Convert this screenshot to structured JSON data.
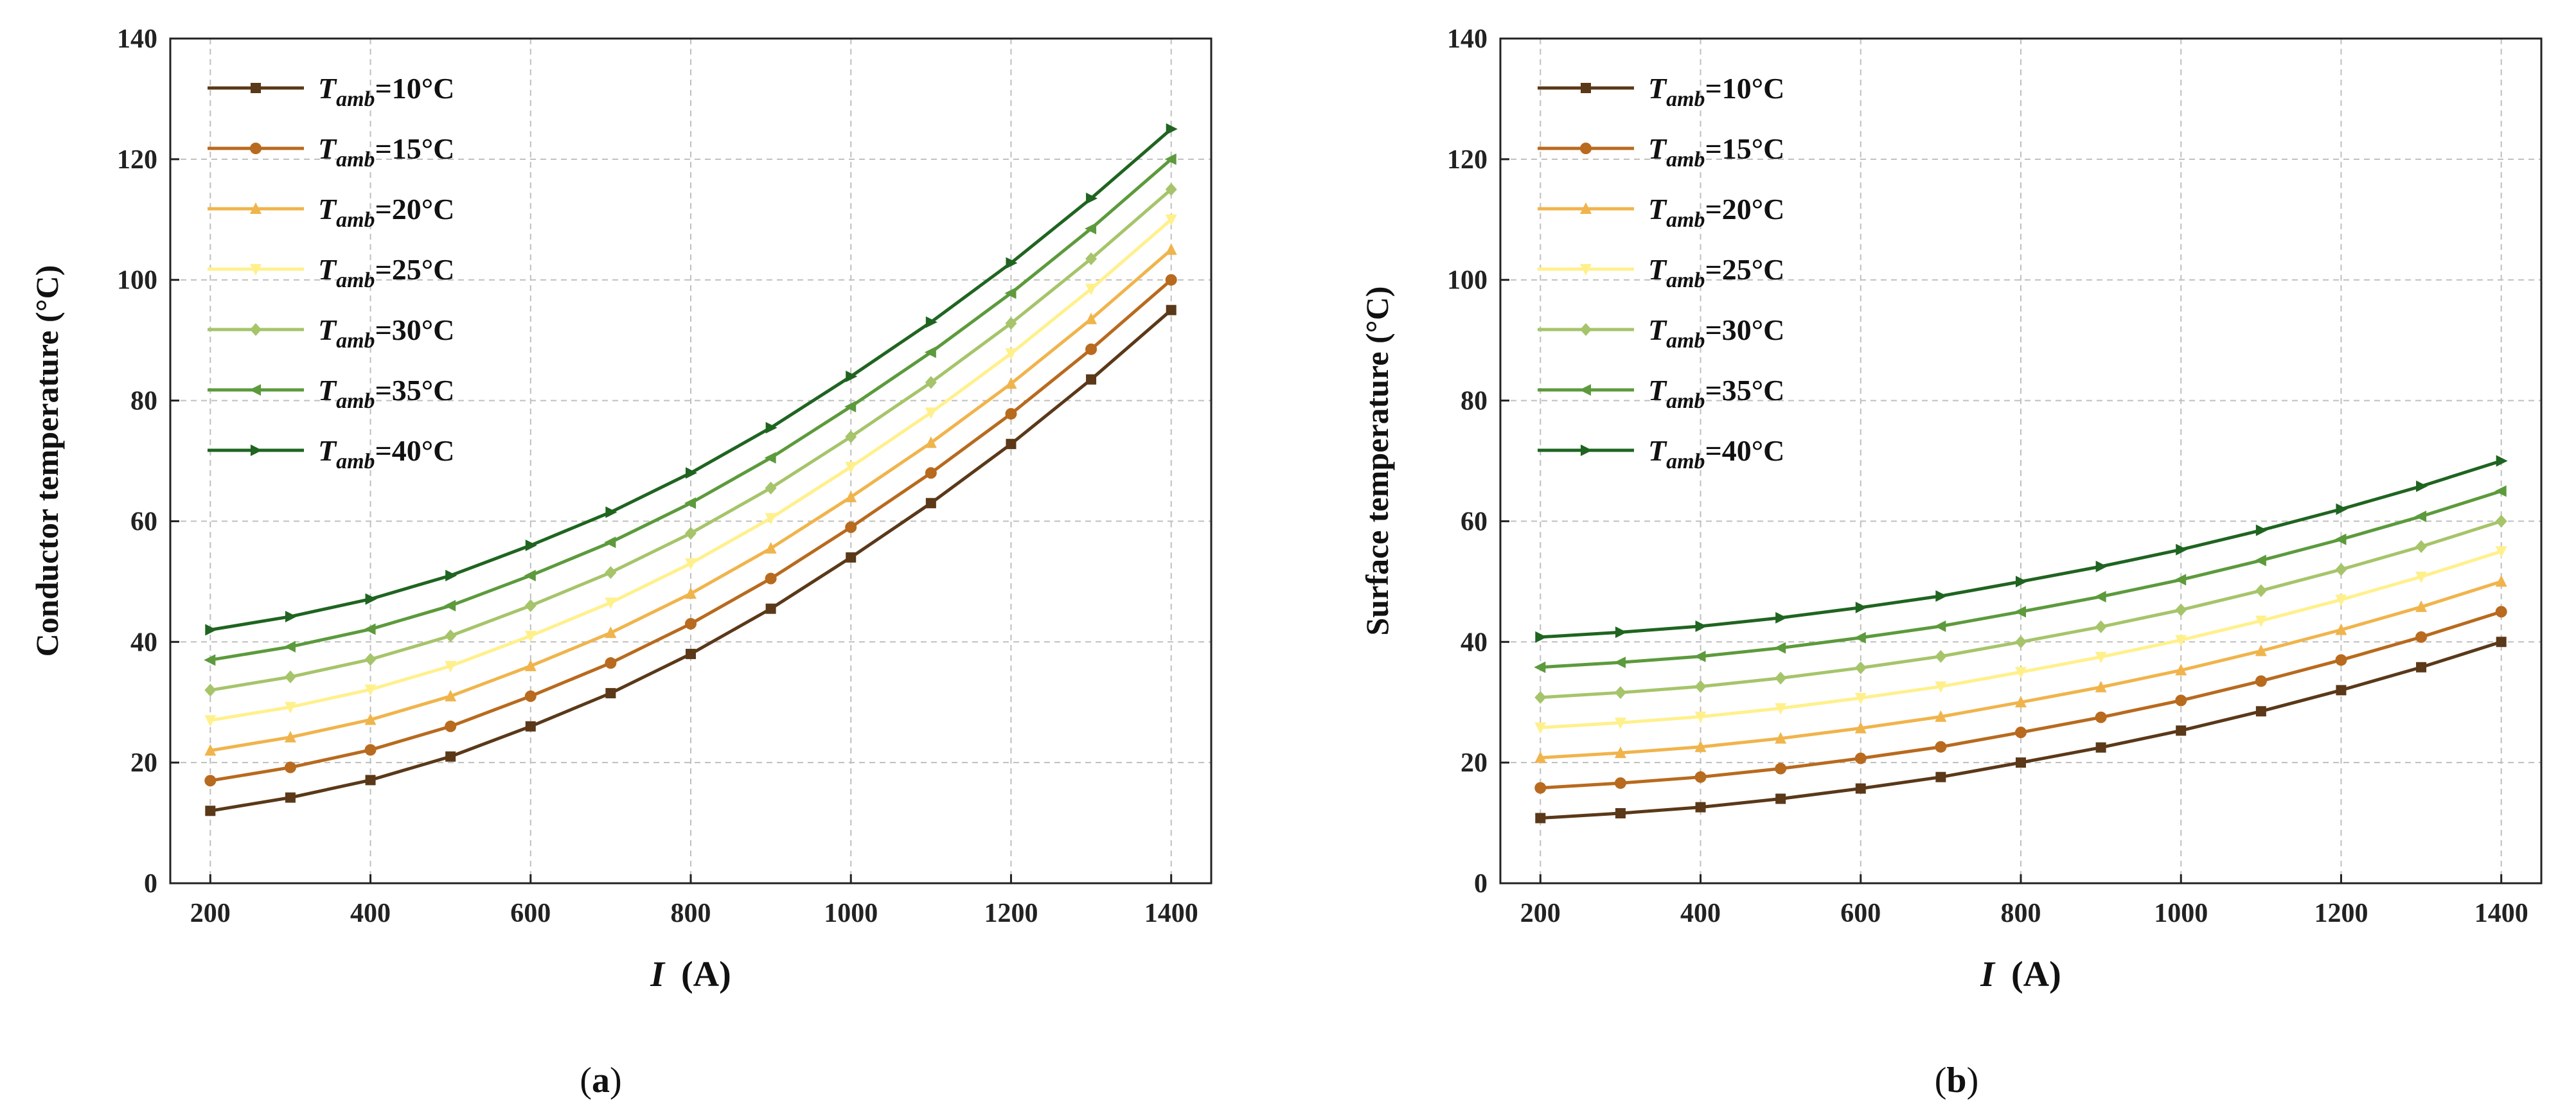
{
  "chart_data": [
    {
      "type": "line",
      "panel": "a",
      "caption_open": "(",
      "caption_letter": "a",
      "caption_close": ")",
      "title": "",
      "xlabel_var": "I",
      "xlabel_unit": "(A)",
      "ylabel": "Conductor temperature (°C)",
      "xlim": [
        150,
        1450
      ],
      "ylim": [
        0,
        140
      ],
      "x_ticks": [
        200,
        400,
        600,
        800,
        1000,
        1200,
        1400
      ],
      "y_ticks": [
        0,
        20,
        40,
        60,
        80,
        100,
        120,
        140
      ],
      "grid": true,
      "legend_position": "top-left",
      "x": [
        200,
        300,
        400,
        500,
        600,
        700,
        800,
        900,
        1000,
        1100,
        1200,
        1300,
        1400
      ],
      "series": [
        {
          "name_var": "T",
          "name_sub": "amb",
          "name_rest": "=10°C",
          "color": "#5a3818",
          "marker": "square",
          "values": [
            12,
            14.2,
            17.1,
            21,
            26,
            31.5,
            38,
            45.5,
            54,
            63,
            72.8,
            83.5,
            95
          ]
        },
        {
          "name_var": "T",
          "name_sub": "amb",
          "name_rest": "=15°C",
          "color": "#b86a1e",
          "marker": "circle",
          "values": [
            17,
            19.2,
            22.1,
            26,
            31,
            36.5,
            43,
            50.5,
            59,
            68,
            77.8,
            88.5,
            100
          ]
        },
        {
          "name_var": "T",
          "name_sub": "amb",
          "name_rest": "=20°C",
          "color": "#f0b44c",
          "marker": "triangle",
          "values": [
            22,
            24.2,
            27.1,
            31,
            36,
            41.5,
            48,
            55.5,
            64,
            73,
            82.8,
            93.5,
            105
          ]
        },
        {
          "name_var": "T",
          "name_sub": "amb",
          "name_rest": "=25°C",
          "color": "#fff08c",
          "marker": "triangle-down",
          "values": [
            27,
            29.2,
            32.1,
            36,
            41,
            46.5,
            53,
            60.5,
            69,
            78,
            87.8,
            98.5,
            110
          ]
        },
        {
          "name_var": "T",
          "name_sub": "amb",
          "name_rest": "=30°C",
          "color": "#a6c46a",
          "marker": "diamond",
          "values": [
            32,
            34.2,
            37.1,
            41,
            46,
            51.5,
            58,
            65.5,
            74,
            83,
            92.8,
            103.5,
            115
          ]
        },
        {
          "name_var": "T",
          "name_sub": "amb",
          "name_rest": "=35°C",
          "color": "#5c9a3c",
          "marker": "triangle-left",
          "values": [
            37,
            39.2,
            42.1,
            46,
            51,
            56.5,
            63,
            70.5,
            79,
            88,
            97.8,
            108.5,
            120
          ]
        },
        {
          "name_var": "T",
          "name_sub": "amb",
          "name_rest": "=40°C",
          "color": "#1f6420",
          "marker": "triangle-right",
          "values": [
            42,
            44.2,
            47.1,
            51,
            56,
            61.5,
            68,
            75.5,
            84,
            93,
            102.8,
            113.5,
            125
          ]
        }
      ]
    },
    {
      "type": "line",
      "panel": "b",
      "caption_open": "(",
      "caption_letter": "b",
      "caption_close": ")",
      "title": "",
      "xlabel_var": "I",
      "xlabel_unit": "(A)",
      "ylabel": "Surface temperature (°C)",
      "xlim": [
        150,
        1450
      ],
      "ylim": [
        0,
        140
      ],
      "x_ticks": [
        200,
        400,
        600,
        800,
        1000,
        1200,
        1400
      ],
      "y_ticks": [
        0,
        20,
        40,
        60,
        80,
        100,
        120,
        140
      ],
      "grid": true,
      "legend_position": "top-left",
      "x": [
        200,
        300,
        400,
        500,
        600,
        700,
        800,
        900,
        1000,
        1100,
        1200,
        1300,
        1400
      ],
      "series": [
        {
          "name_var": "T",
          "name_sub": "amb",
          "name_rest": "=10°C",
          "color": "#5a3818",
          "marker": "square",
          "values": [
            10.8,
            11.6,
            12.6,
            14,
            15.7,
            17.6,
            20,
            22.5,
            25.3,
            28.5,
            32,
            35.8,
            40
          ]
        },
        {
          "name_var": "T",
          "name_sub": "amb",
          "name_rest": "=15°C",
          "color": "#b86a1e",
          "marker": "circle",
          "values": [
            15.8,
            16.6,
            17.6,
            19,
            20.7,
            22.6,
            25,
            27.5,
            30.3,
            33.5,
            37,
            40.8,
            45
          ]
        },
        {
          "name_var": "T",
          "name_sub": "amb",
          "name_rest": "=20°C",
          "color": "#f0b44c",
          "marker": "triangle",
          "values": [
            20.8,
            21.6,
            22.6,
            24,
            25.7,
            27.6,
            30,
            32.5,
            35.3,
            38.5,
            42,
            45.8,
            50
          ]
        },
        {
          "name_var": "T",
          "name_sub": "amb",
          "name_rest": "=25°C",
          "color": "#fff08c",
          "marker": "triangle-down",
          "values": [
            25.8,
            26.6,
            27.6,
            29,
            30.7,
            32.6,
            35,
            37.5,
            40.3,
            43.5,
            47,
            50.8,
            55
          ]
        },
        {
          "name_var": "T",
          "name_sub": "amb",
          "name_rest": "=30°C",
          "color": "#a6c46a",
          "marker": "diamond",
          "values": [
            30.8,
            31.6,
            32.6,
            34,
            35.7,
            37.6,
            40,
            42.5,
            45.3,
            48.5,
            52,
            55.8,
            60
          ]
        },
        {
          "name_var": "T",
          "name_sub": "amb",
          "name_rest": "=35°C",
          "color": "#5c9a3c",
          "marker": "triangle-left",
          "values": [
            35.8,
            36.6,
            37.6,
            39,
            40.7,
            42.6,
            45,
            47.5,
            50.3,
            53.5,
            57,
            60.8,
            65
          ]
        },
        {
          "name_var": "T",
          "name_sub": "amb",
          "name_rest": "=40°C",
          "color": "#1f6420",
          "marker": "triangle-right",
          "values": [
            40.8,
            41.6,
            42.6,
            44,
            45.7,
            47.6,
            50,
            52.5,
            55.3,
            58.5,
            62,
            65.8,
            70
          ]
        }
      ]
    }
  ]
}
